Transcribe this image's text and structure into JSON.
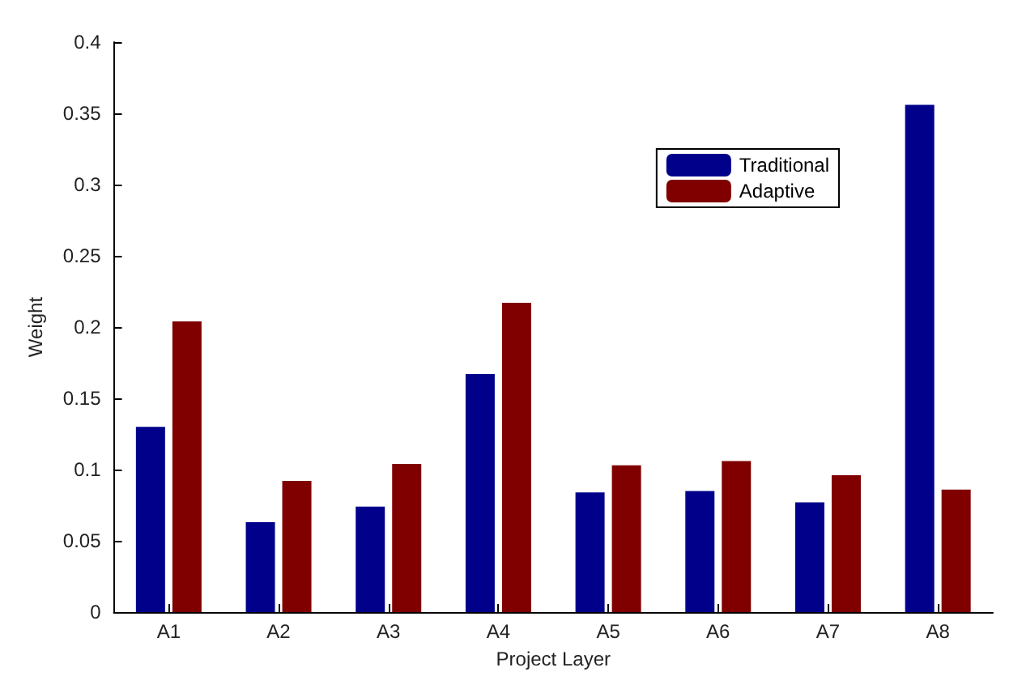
{
  "chart_data": {
    "type": "bar",
    "xlabel": "Project Layer",
    "ylabel": "Weight",
    "categories": [
      "A1",
      "A2",
      "A3",
      "A4",
      "A5",
      "A6",
      "A7",
      "A8"
    ],
    "series": [
      {
        "name": "Traditional",
        "color": "#00008b",
        "values": [
          0.13,
          0.063,
          0.074,
          0.167,
          0.084,
          0.085,
          0.077,
          0.356
        ]
      },
      {
        "name": "Adaptive",
        "color": "#800000",
        "values": [
          0.204,
          0.092,
          0.104,
          0.217,
          0.103,
          0.106,
          0.096,
          0.086
        ]
      }
    ],
    "ylim": [
      0,
      0.4
    ],
    "yticks": [
      0,
      0.05,
      0.1,
      0.15,
      0.2,
      0.25,
      0.3,
      0.35,
      0.4
    ],
    "grid": false,
    "legend": "top right"
  }
}
